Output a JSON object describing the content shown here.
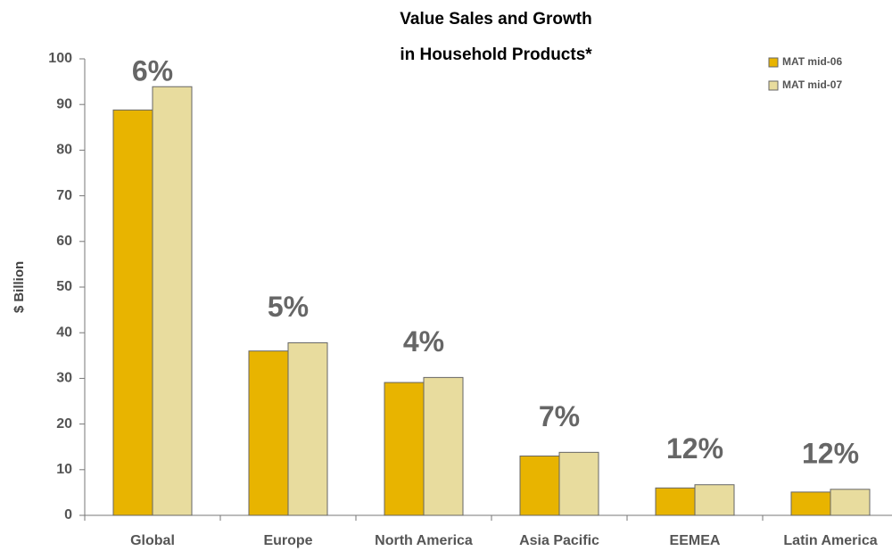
{
  "chart_data": {
    "type": "bar",
    "title": [
      "Value Sales and Growth",
      "in Household Products*"
    ],
    "y_label": "$ Billion",
    "categories": [
      "Global",
      "Europe",
      "North America",
      "Asia Pacific",
      "EEMEA",
      "Latin America"
    ],
    "series": [
      {
        "name": "MAT mid-06",
        "color": "#e8b400",
        "values": [
          88.8,
          36,
          29.1,
          13,
          6,
          5.1
        ]
      },
      {
        "name": "MAT mid-07",
        "color": "#e8dc9e",
        "values": [
          93.9,
          37.8,
          30.2,
          13.8,
          6.7,
          5.7
        ]
      }
    ],
    "annotations": [
      "6%",
      "5%",
      "4%",
      "7%",
      "12%",
      "12%"
    ],
    "ylim": [
      0,
      100
    ],
    "yticks": [
      0,
      10,
      20,
      30,
      40,
      50,
      60,
      70,
      80,
      90,
      100
    ],
    "legend": "top-right",
    "grid": false
  }
}
